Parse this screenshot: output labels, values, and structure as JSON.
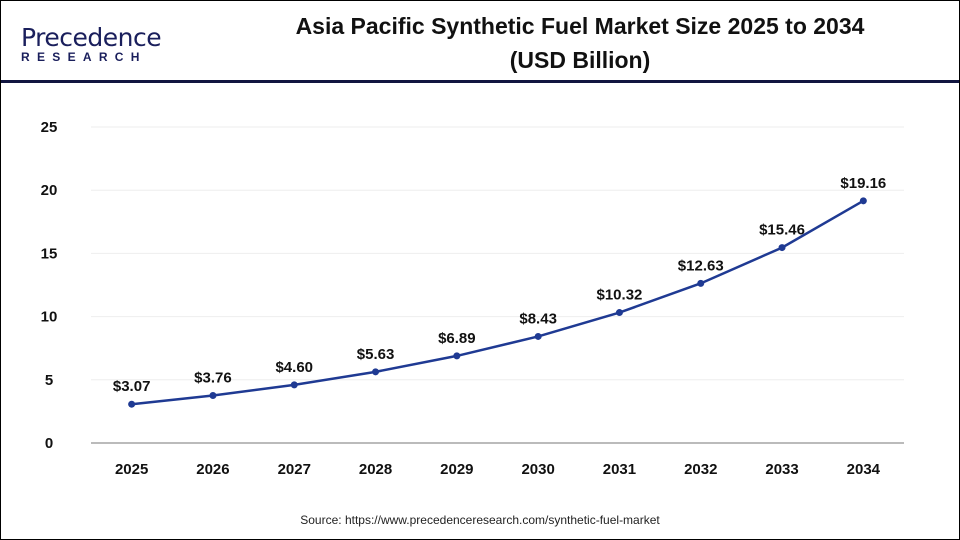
{
  "logo": {
    "line1": "Precedence",
    "line2": "RESEARCH"
  },
  "chart_data": {
    "type": "line",
    "title": "Asia Pacific Synthetic Fuel Market Size 2025 to 2034 (USD Billion)",
    "title_lines": [
      "Asia Pacific Synthetic Fuel Market Size 2025 to 2034",
      "(USD Billion)"
    ],
    "categories": [
      "2025",
      "2026",
      "2027",
      "2028",
      "2029",
      "2030",
      "2031",
      "2032",
      "2033",
      "2034"
    ],
    "values": [
      3.07,
      3.76,
      4.6,
      5.63,
      6.89,
      8.43,
      10.32,
      12.63,
      15.46,
      19.16
    ],
    "data_labels": [
      "$3.07",
      "$3.76",
      "$4.60",
      "$5.63",
      "$6.89",
      "$8.43",
      "$10.32",
      "$12.63",
      "$15.46",
      "$19.16"
    ],
    "ylim": [
      0,
      25
    ],
    "yticks": [
      0,
      5,
      10,
      15,
      20,
      25
    ],
    "xlabel": "",
    "ylabel": "",
    "grid": true,
    "line_color": "#1f3a93"
  },
  "source": "Source: https://www.precedenceresearch.com/synthetic-fuel-market"
}
